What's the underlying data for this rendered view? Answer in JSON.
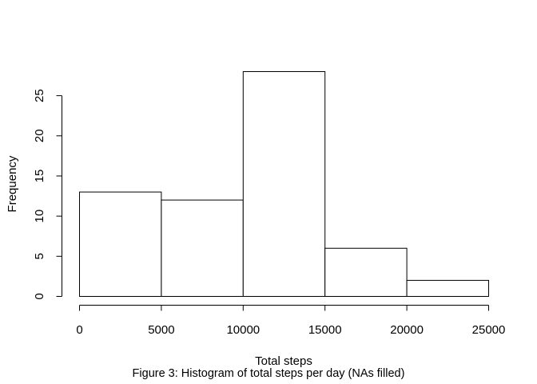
{
  "chart_data": {
    "type": "bar",
    "subtype": "histogram",
    "bins": [
      {
        "start": 0,
        "end": 5000,
        "count": 13
      },
      {
        "start": 5000,
        "end": 10000,
        "count": 12
      },
      {
        "start": 10000,
        "end": 15000,
        "count": 28
      },
      {
        "start": 15000,
        "end": 20000,
        "count": 6
      },
      {
        "start": 20000,
        "end": 25000,
        "count": 2
      }
    ],
    "title": "",
    "xlabel": "Total steps",
    "ylabel": "Frequency",
    "xlim": [
      0,
      25000
    ],
    "ylim": [
      0,
      28
    ],
    "xticks": [
      "0",
      "5000",
      "10000",
      "15000",
      "20000",
      "25000"
    ],
    "yticks": [
      "0",
      "5",
      "10",
      "15",
      "20",
      "25"
    ],
    "grid": false,
    "legend": "none",
    "bar_fill": "#ffffff",
    "bar_stroke": "#000000"
  },
  "caption": "Figure 3: Histogram of total steps per day (NAs filled)"
}
